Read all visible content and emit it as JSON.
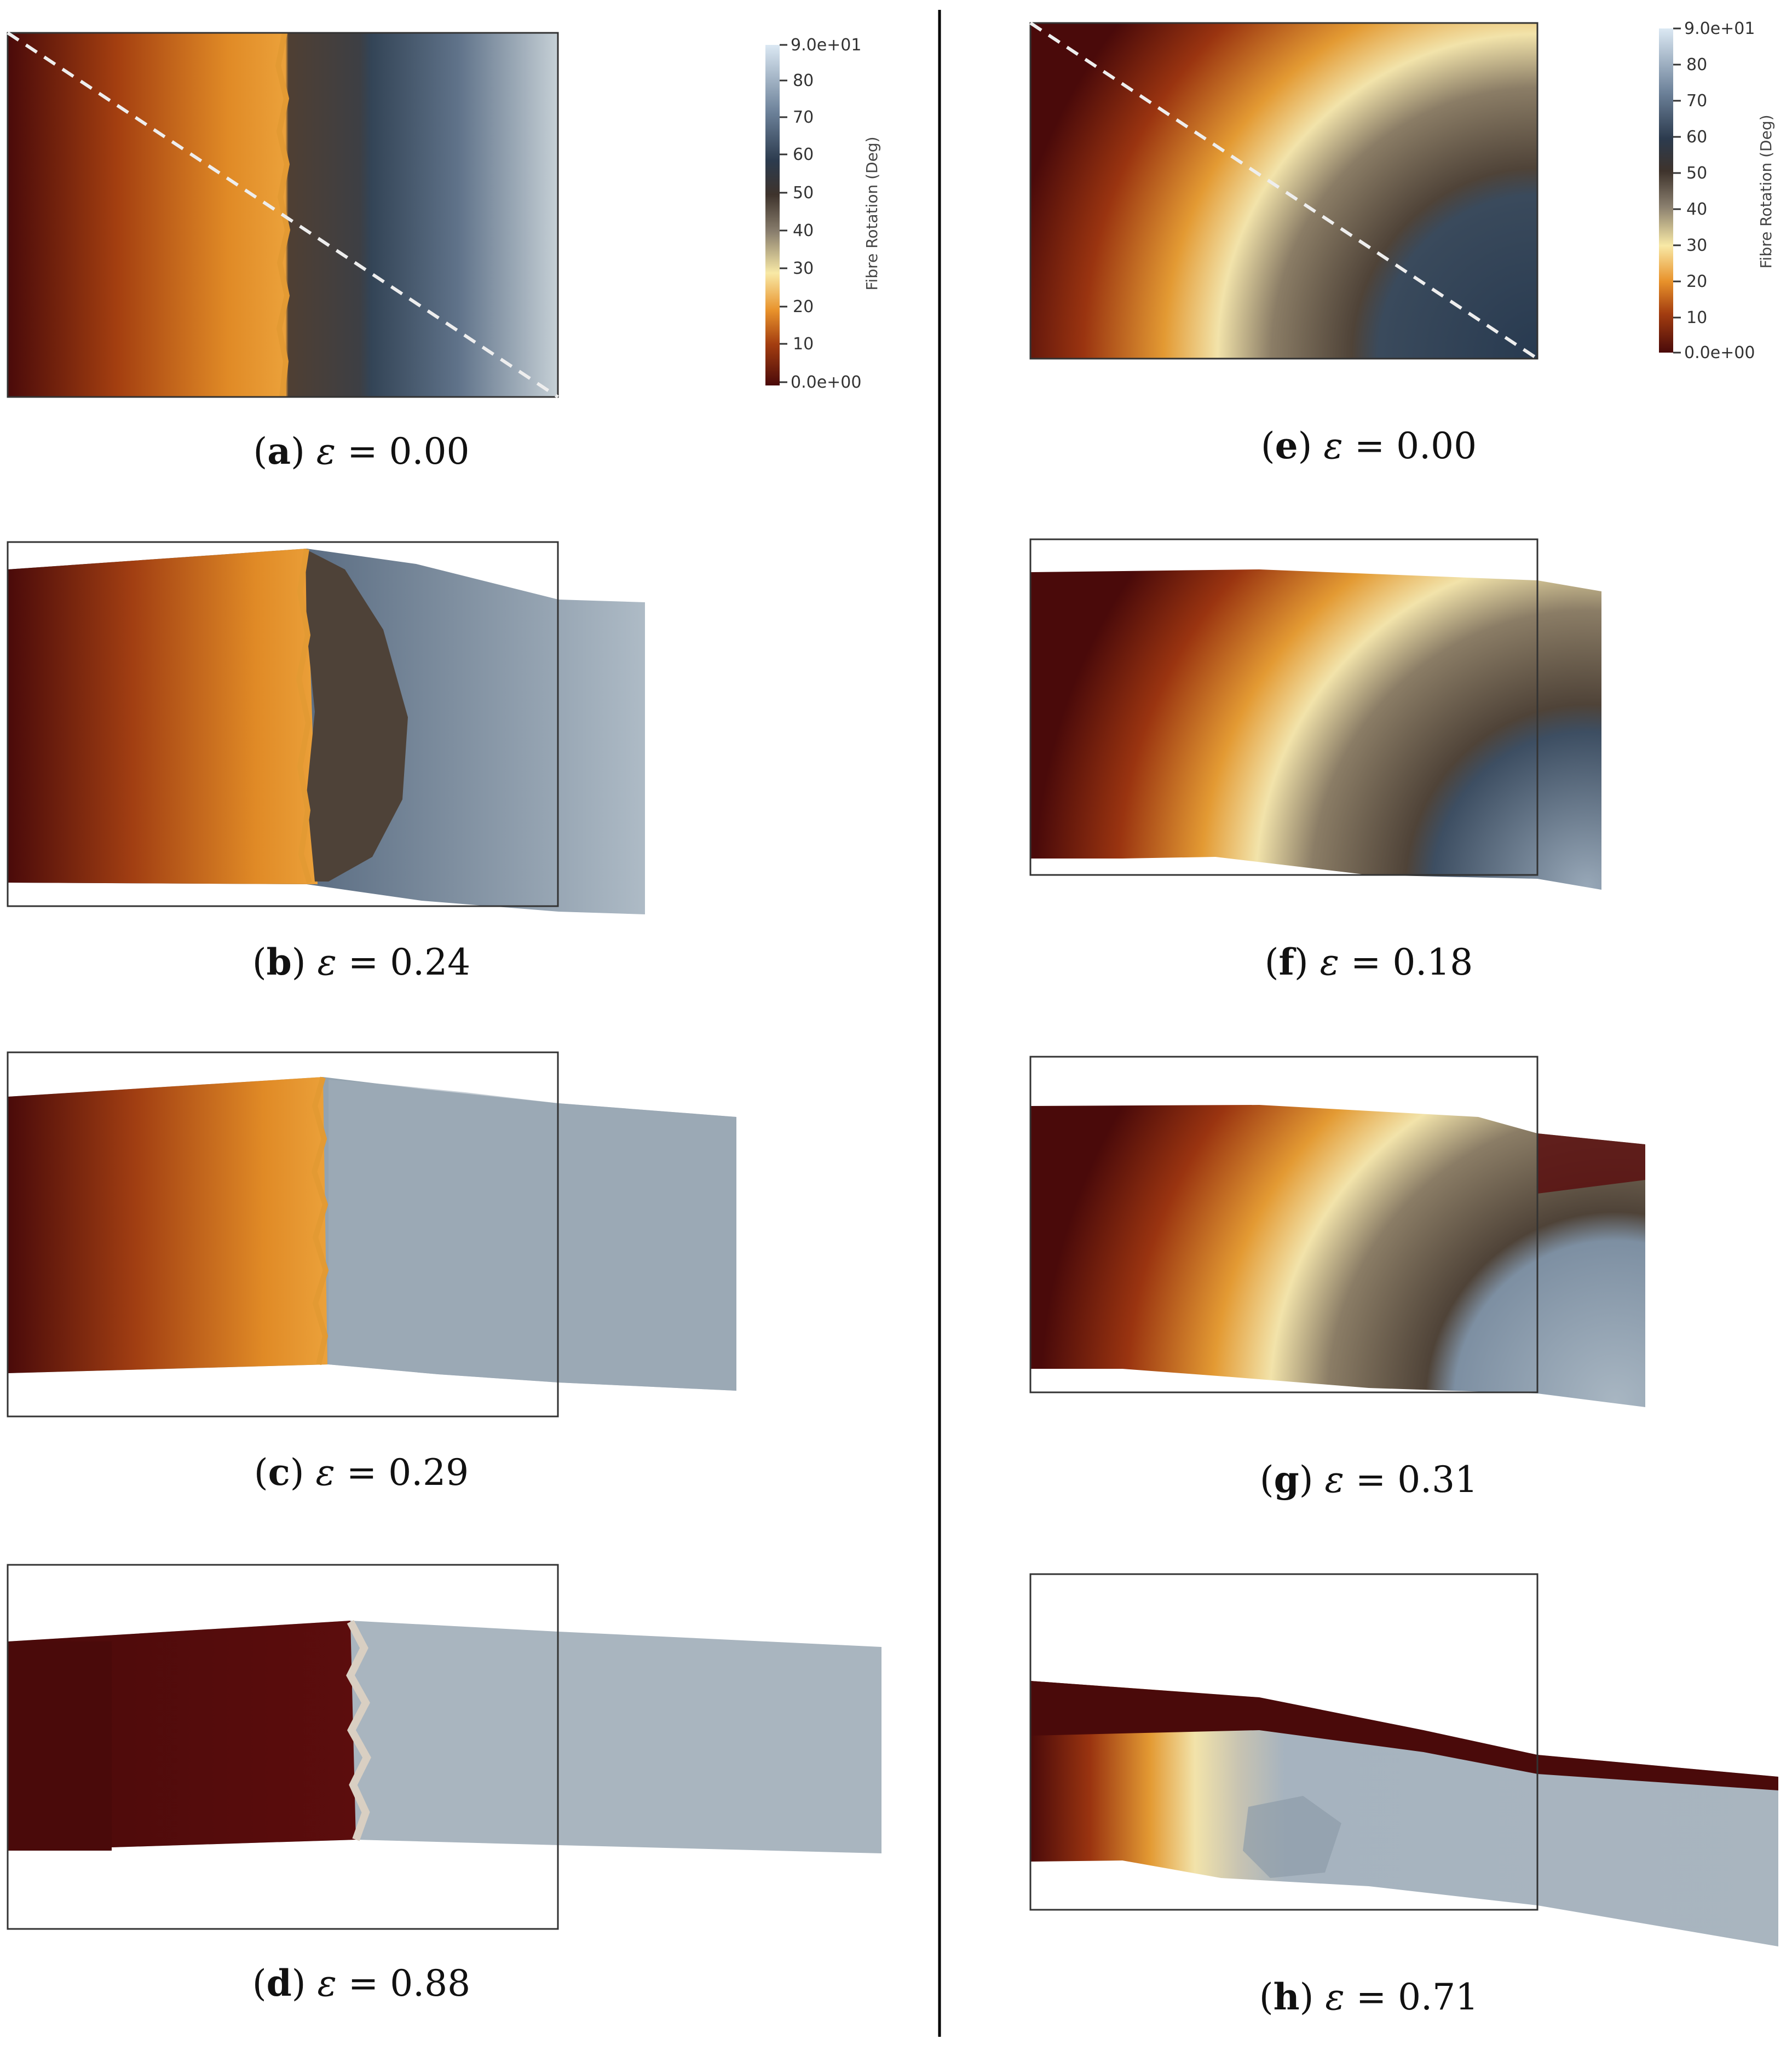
{
  "colorbar": {
    "title": "Fibre Rotation (Deg)",
    "ticks": [
      "9.0e+01",
      "80",
      "70",
      "60",
      "50",
      "40",
      "30",
      "20",
      "10",
      "0.0e+00"
    ]
  },
  "panels": [
    {
      "id": "a",
      "letter": "a",
      "symbol": "ε",
      "relation": "=",
      "value": "0.00"
    },
    {
      "id": "b",
      "letter": "b",
      "symbol": "ε",
      "relation": "=",
      "value": "0.24"
    },
    {
      "id": "c",
      "letter": "c",
      "symbol": "ε",
      "relation": "=",
      "value": "0.29"
    },
    {
      "id": "d",
      "letter": "d",
      "symbol": "ε",
      "relation": "=",
      "value": "0.88"
    },
    {
      "id": "e",
      "letter": "e",
      "symbol": "ε",
      "relation": "=",
      "value": "0.00"
    },
    {
      "id": "f",
      "letter": "f",
      "symbol": "ε",
      "relation": "=",
      "value": "0.18"
    },
    {
      "id": "g",
      "letter": "g",
      "symbol": "ε",
      "relation": "=",
      "value": "0.31"
    },
    {
      "id": "h",
      "letter": "h",
      "symbol": "ε",
      "relation": "=",
      "value": "0.71"
    }
  ],
  "colors": {
    "dark_red": "#4a0a0a",
    "orange": "#e6952b",
    "cream": "#f2e6b0",
    "taupe": "#4e4238",
    "slate": "#3a4a5c",
    "light_gray_blue": "#a9b5bf"
  }
}
